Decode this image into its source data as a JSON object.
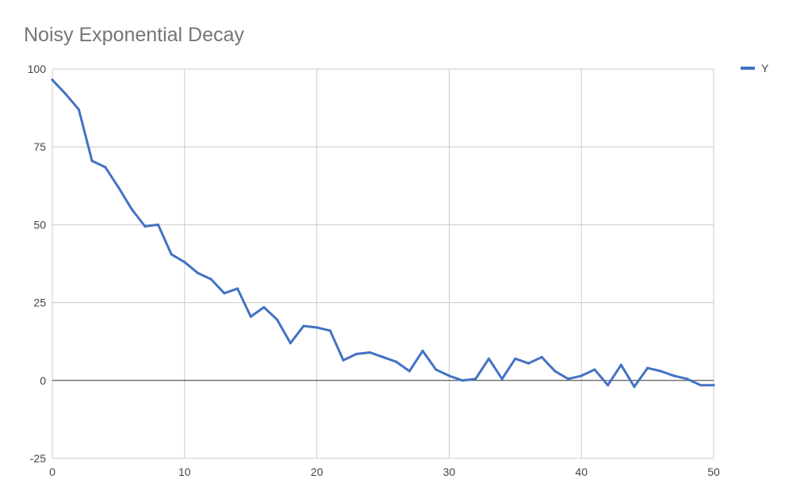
{
  "chart_data": {
    "type": "line",
    "title": "Noisy Exponential Decay",
    "xlabel": "",
    "ylabel": "",
    "xlim": [
      0,
      50
    ],
    "ylim": [
      -25,
      100
    ],
    "xticks": [
      0,
      10,
      20,
      30,
      40,
      50
    ],
    "yticks": [
      -25,
      0,
      25,
      50,
      75,
      100
    ],
    "grid": true,
    "legend_position": "top-right",
    "series": [
      {
        "name": "Y",
        "color": "#4472c4",
        "x": [
          0,
          1,
          2,
          3,
          4,
          5,
          6,
          7,
          8,
          9,
          10,
          11,
          12,
          13,
          14,
          15,
          16,
          17,
          18,
          19,
          20,
          21,
          22,
          23,
          24,
          25,
          26,
          27,
          28,
          29,
          30,
          31,
          32,
          33,
          34,
          35,
          36,
          37,
          38,
          39,
          40,
          41,
          42,
          43,
          44,
          45,
          46,
          47,
          48,
          49,
          50
        ],
        "y": [
          96.5,
          92,
          87,
          70.5,
          68.5,
          62,
          55,
          49.5,
          50,
          40.5,
          38,
          34.5,
          32.5,
          28,
          29.5,
          20.5,
          23.5,
          19.5,
          12,
          17.5,
          17,
          16,
          6.5,
          8.5,
          9,
          7.5,
          6,
          3,
          9.5,
          3.5,
          1.5,
          0,
          0.5,
          7,
          0.5,
          7,
          5.5,
          7.5,
          3,
          0.5,
          1.5,
          3.5,
          -1.5,
          5,
          -2,
          4,
          3,
          1.5,
          0.5,
          -1.5,
          -1.5
        ]
      }
    ]
  }
}
